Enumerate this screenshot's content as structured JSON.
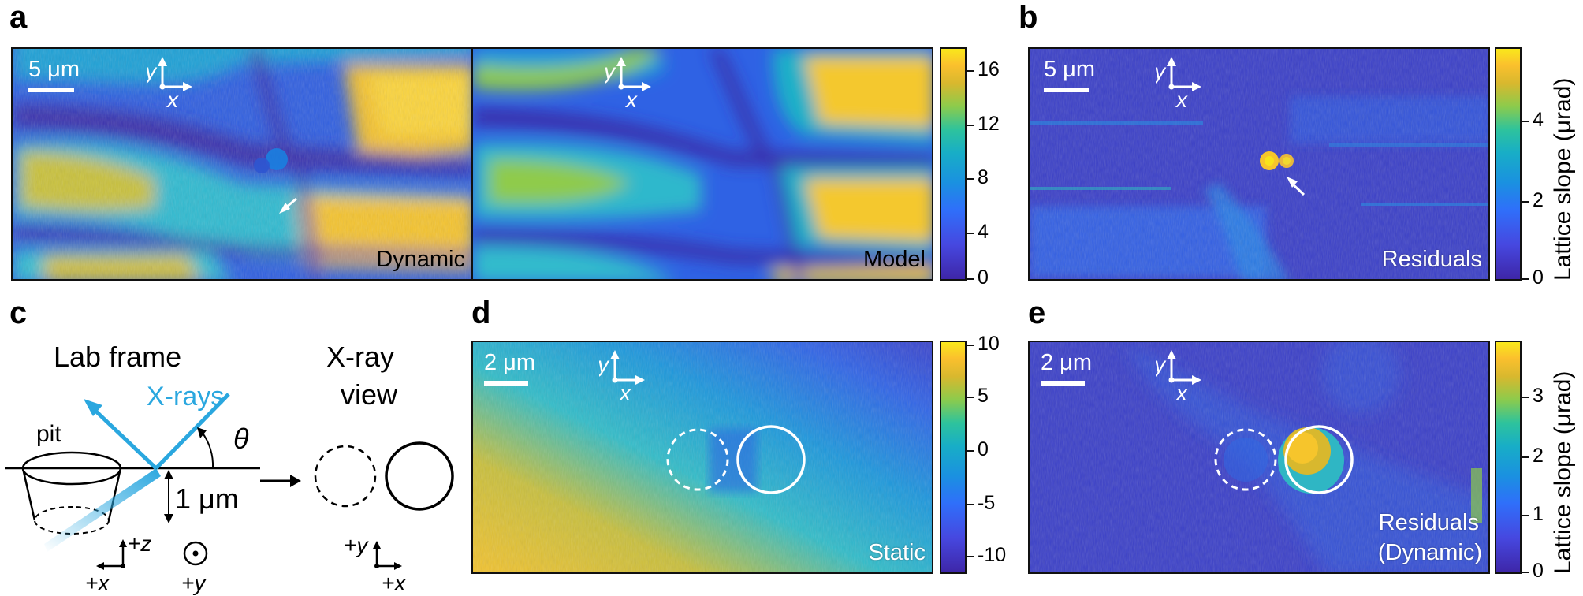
{
  "panels": {
    "a": {
      "label": "a",
      "left_title": "Dynamic",
      "right_title": "Model",
      "scale_text": "5 μm",
      "colorbar_ticks": [
        "16",
        "12",
        "8",
        "4",
        "0"
      ]
    },
    "b": {
      "label": "b",
      "title": "Residuals",
      "scale_text": "5 μm",
      "colorbar_ticks": [
        "4",
        "2",
        "0"
      ],
      "colorbar_title": "Lattice slope (μrad)"
    },
    "c": {
      "label": "c",
      "lab_frame": "Lab frame",
      "xray_view_line1": "X-ray",
      "xray_view_line2": "view",
      "xrays": "X-rays",
      "pit": "pit",
      "theta": "θ",
      "depth": "1 μm",
      "axis_pz": "+z",
      "axis_px": "+x",
      "axis_py": "+y",
      "axis_py2": "+y",
      "axis_px2": "+x"
    },
    "d": {
      "label": "d",
      "title": "Static",
      "scale_text": "2 μm",
      "colorbar_ticks": [
        "10",
        "5",
        "0",
        "-5",
        "-10"
      ]
    },
    "e": {
      "label": "e",
      "title_line1": "Residuals",
      "title_line2": "(Dynamic)",
      "scale_text": "2 μm",
      "colorbar_ticks": [
        "3",
        "2",
        "1",
        "0"
      ],
      "colorbar_title": "Lattice slope (μrad)"
    }
  },
  "axis_labels": {
    "y": "y",
    "x": "x"
  },
  "colormap": [
    "#3e26a8",
    "#4648e0",
    "#2f6ffa",
    "#1a91e0",
    "#18aec6",
    "#2ec39c",
    "#8ccb4c",
    "#d8b82e",
    "#fbc02d",
    "#f9e81b"
  ]
}
